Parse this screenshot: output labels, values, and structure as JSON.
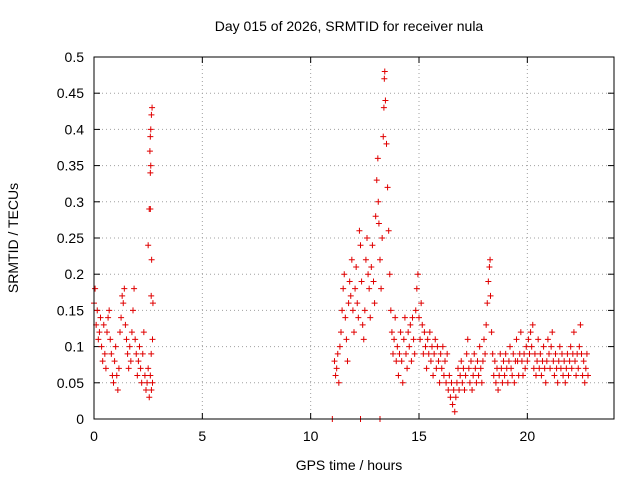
{
  "chart_data": {
    "type": "scatter",
    "title": "Day 015 of 2026, SRMTID for receiver nula",
    "xlabel": "GPS time / hours",
    "ylabel": "SRMTID / TECUs",
    "xlim": [
      0,
      24
    ],
    "ylim": [
      0,
      0.5
    ],
    "xticks": [
      0,
      5,
      10,
      15,
      20
    ],
    "xtick_labels": [
      "0",
      "5",
      "10",
      "15",
      "20"
    ],
    "yticks": [
      0,
      0.05,
      0.1,
      0.15,
      0.2,
      0.25,
      0.3,
      0.35,
      0.4,
      0.45,
      0.5
    ],
    "ytick_labels": [
      "0",
      "0.05",
      "0.1",
      "0.15",
      "0.2",
      "0.25",
      "0.3",
      "0.35",
      "0.4",
      "0.45",
      "0.5"
    ],
    "grid": true,
    "marker": "+",
    "color": "#e00000",
    "series": [
      {
        "name": "SRMTID",
        "points": [
          [
            0.0,
            0.16
          ],
          [
            0.05,
            0.18
          ],
          [
            0.1,
            0.13
          ],
          [
            0.15,
            0.15
          ],
          [
            0.2,
            0.11
          ],
          [
            0.25,
            0.12
          ],
          [
            0.3,
            0.14
          ],
          [
            0.35,
            0.1
          ],
          [
            0.4,
            0.08
          ],
          [
            0.45,
            0.13
          ],
          [
            0.5,
            0.09
          ],
          [
            0.55,
            0.07
          ],
          [
            0.6,
            0.12
          ],
          [
            0.65,
            0.14
          ],
          [
            0.7,
            0.15
          ],
          [
            0.75,
            0.11
          ],
          [
            0.8,
            0.09
          ],
          [
            0.85,
            0.06
          ],
          [
            0.9,
            0.05
          ],
          [
            0.95,
            0.08
          ],
          [
            1.0,
            0.1
          ],
          [
            1.05,
            0.06
          ],
          [
            1.1,
            0.04
          ],
          [
            1.15,
            0.07
          ],
          [
            1.2,
            0.12
          ],
          [
            1.25,
            0.14
          ],
          [
            1.3,
            0.17
          ],
          [
            1.35,
            0.16
          ],
          [
            1.4,
            0.18
          ],
          [
            1.45,
            0.13
          ],
          [
            1.5,
            0.11
          ],
          [
            1.55,
            0.09
          ],
          [
            1.6,
            0.07
          ],
          [
            1.65,
            0.1
          ],
          [
            1.7,
            0.08
          ],
          [
            1.75,
            0.12
          ],
          [
            1.8,
            0.15
          ],
          [
            1.85,
            0.18
          ],
          [
            1.9,
            0.11
          ],
          [
            1.95,
            0.09
          ],
          [
            2.0,
            0.06
          ],
          [
            2.05,
            0.08
          ],
          [
            2.1,
            0.1
          ],
          [
            2.15,
            0.07
          ],
          [
            2.2,
            0.05
          ],
          [
            2.25,
            0.09
          ],
          [
            2.3,
            0.12
          ],
          [
            2.35,
            0.06
          ],
          [
            2.4,
            0.04
          ],
          [
            2.45,
            0.05
          ],
          [
            2.5,
            0.07
          ],
          [
            2.55,
            0.03
          ],
          [
            2.6,
            0.06
          ],
          [
            2.65,
            0.04
          ],
          [
            2.7,
            0.05
          ],
          [
            2.5,
            0.24
          ],
          [
            2.55,
            0.29
          ],
          [
            2.6,
            0.34
          ],
          [
            2.6,
            0.39
          ],
          [
            2.65,
            0.42
          ],
          [
            2.62,
            0.35
          ],
          [
            2.68,
            0.43
          ],
          [
            2.66,
            0.22
          ],
          [
            2.64,
            0.17
          ],
          [
            2.7,
            0.11
          ],
          [
            2.72,
            0.16
          ],
          [
            2.6,
            0.29
          ],
          [
            2.58,
            0.37
          ],
          [
            2.62,
            0.4
          ],
          [
            2.64,
            0.09
          ],
          [
            11.0,
            0.0
          ],
          [
            11.1,
            0.08
          ],
          [
            11.15,
            0.06
          ],
          [
            11.2,
            0.07
          ],
          [
            11.25,
            0.09
          ],
          [
            11.3,
            0.05
          ],
          [
            11.35,
            0.1
          ],
          [
            11.4,
            0.12
          ],
          [
            11.45,
            0.15
          ],
          [
            11.5,
            0.18
          ],
          [
            11.55,
            0.2
          ],
          [
            11.6,
            0.14
          ],
          [
            11.65,
            0.11
          ],
          [
            11.7,
            0.08
          ],
          [
            11.75,
            0.16
          ],
          [
            11.8,
            0.19
          ],
          [
            11.85,
            0.17
          ],
          [
            11.9,
            0.22
          ],
          [
            11.95,
            0.15
          ],
          [
            12.0,
            0.12
          ],
          [
            12.05,
            0.18
          ],
          [
            12.1,
            0.21
          ],
          [
            12.15,
            0.16
          ],
          [
            12.2,
            0.14
          ],
          [
            12.25,
            0.26
          ],
          [
            12.3,
            0.24
          ],
          [
            12.35,
            0.19
          ],
          [
            12.4,
            0.13
          ],
          [
            12.45,
            0.11
          ],
          [
            12.5,
            0.15
          ],
          [
            12.55,
            0.22
          ],
          [
            12.6,
            0.25
          ],
          [
            12.65,
            0.2
          ],
          [
            12.7,
            0.18
          ],
          [
            12.75,
            0.14
          ],
          [
            12.8,
            0.21
          ],
          [
            12.85,
            0.24
          ],
          [
            12.9,
            0.19
          ],
          [
            12.95,
            0.16
          ],
          [
            13.0,
            0.28
          ],
          [
            13.05,
            0.33
          ],
          [
            13.1,
            0.36
          ],
          [
            13.12,
            0.3
          ],
          [
            13.15,
            0.27
          ],
          [
            13.2,
            0.22
          ],
          [
            13.25,
            0.18
          ],
          [
            13.3,
            0.25
          ],
          [
            13.35,
            0.39
          ],
          [
            13.38,
            0.43
          ],
          [
            13.4,
            0.47
          ],
          [
            13.42,
            0.48
          ],
          [
            13.45,
            0.44
          ],
          [
            13.5,
            0.38
          ],
          [
            13.55,
            0.32
          ],
          [
            13.6,
            0.26
          ],
          [
            13.65,
            0.2
          ],
          [
            13.7,
            0.15
          ],
          [
            13.75,
            0.12
          ],
          [
            13.8,
            0.09
          ],
          [
            13.85,
            0.11
          ],
          [
            13.9,
            0.14
          ],
          [
            13.95,
            0.08
          ],
          [
            14.0,
            0.1
          ],
          [
            14.05,
            0.06
          ],
          [
            14.1,
            0.09
          ],
          [
            14.15,
            0.12
          ],
          [
            14.2,
            0.08
          ],
          [
            14.25,
            0.05
          ],
          [
            14.3,
            0.11
          ],
          [
            14.35,
            0.14
          ],
          [
            14.4,
            0.09
          ],
          [
            14.45,
            0.07
          ],
          [
            14.5,
            0.12
          ],
          [
            14.55,
            0.1
          ],
          [
            14.6,
            0.13
          ],
          [
            14.65,
            0.08
          ],
          [
            14.7,
            0.14
          ],
          [
            14.75,
            0.11
          ],
          [
            14.8,
            0.09
          ],
          [
            14.85,
            0.15
          ],
          [
            14.9,
            0.18
          ],
          [
            14.95,
            0.2
          ],
          [
            15.0,
            0.14
          ],
          [
            15.05,
            0.11
          ],
          [
            15.1,
            0.16
          ],
          [
            15.15,
            0.13
          ],
          [
            15.2,
            0.09
          ],
          [
            15.25,
            0.12
          ],
          [
            15.3,
            0.1
          ],
          [
            15.35,
            0.07
          ],
          [
            15.4,
            0.11
          ],
          [
            15.45,
            0.09
          ],
          [
            15.5,
            0.12
          ],
          [
            15.55,
            0.08
          ],
          [
            15.6,
            0.1
          ],
          [
            15.65,
            0.06
          ],
          [
            15.7,
            0.09
          ],
          [
            15.75,
            0.11
          ],
          [
            15.8,
            0.07
          ],
          [
            15.85,
            0.1
          ],
          [
            15.9,
            0.08
          ],
          [
            15.95,
            0.05
          ],
          [
            16.0,
            0.09
          ],
          [
            16.05,
            0.07
          ],
          [
            16.1,
            0.1
          ],
          [
            16.15,
            0.06
          ],
          [
            16.2,
            0.08
          ],
          [
            16.25,
            0.05
          ],
          [
            16.3,
            0.09
          ],
          [
            16.35,
            0.04
          ],
          [
            16.4,
            0.06
          ],
          [
            16.45,
            0.03
          ],
          [
            16.5,
            0.05
          ],
          [
            16.55,
            0.02
          ],
          [
            16.6,
            0.04
          ],
          [
            16.65,
            0.01
          ],
          [
            16.7,
            0.03
          ],
          [
            16.75,
            0.05
          ],
          [
            16.8,
            0.07
          ],
          [
            16.85,
            0.04
          ],
          [
            16.9,
            0.06
          ],
          [
            16.95,
            0.08
          ],
          [
            17.0,
            0.05
          ],
          [
            17.05,
            0.07
          ],
          [
            17.1,
            0.04
          ],
          [
            17.15,
            0.06
          ],
          [
            17.2,
            0.09
          ],
          [
            17.25,
            0.11
          ],
          [
            17.3,
            0.07
          ],
          [
            17.35,
            0.05
          ],
          [
            17.4,
            0.08
          ],
          [
            17.45,
            0.04
          ],
          [
            17.5,
            0.06
          ],
          [
            17.55,
            0.09
          ],
          [
            17.6,
            0.07
          ],
          [
            17.65,
            0.05
          ],
          [
            17.7,
            0.08
          ],
          [
            17.75,
            0.06
          ],
          [
            17.8,
            0.1
          ],
          [
            17.85,
            0.07
          ],
          [
            17.9,
            0.05
          ],
          [
            17.95,
            0.08
          ],
          [
            18.0,
            0.11
          ],
          [
            18.05,
            0.09
          ],
          [
            18.1,
            0.13
          ],
          [
            18.15,
            0.16
          ],
          [
            18.2,
            0.19
          ],
          [
            18.25,
            0.21
          ],
          [
            18.28,
            0.22
          ],
          [
            18.3,
            0.17
          ],
          [
            18.35,
            0.12
          ],
          [
            18.4,
            0.09
          ],
          [
            18.45,
            0.06
          ],
          [
            18.5,
            0.08
          ],
          [
            18.55,
            0.05
          ],
          [
            18.6,
            0.07
          ],
          [
            18.65,
            0.04
          ],
          [
            18.7,
            0.06
          ],
          [
            18.75,
            0.09
          ],
          [
            18.8,
            0.07
          ],
          [
            18.85,
            0.05
          ],
          [
            18.9,
            0.08
          ],
          [
            18.95,
            0.06
          ],
          [
            19.0,
            0.09
          ],
          [
            19.05,
            0.07
          ],
          [
            19.1,
            0.05
          ],
          [
            19.15,
            0.08
          ],
          [
            19.2,
            0.1
          ],
          [
            19.25,
            0.07
          ],
          [
            19.3,
            0.06
          ],
          [
            19.35,
            0.09
          ],
          [
            19.4,
            0.05
          ],
          [
            19.45,
            0.08
          ],
          [
            19.5,
            0.11
          ],
          [
            19.55,
            0.08
          ],
          [
            19.6,
            0.06
          ],
          [
            19.65,
            0.09
          ],
          [
            19.7,
            0.12
          ],
          [
            19.75,
            0.08
          ],
          [
            19.8,
            0.06
          ],
          [
            19.85,
            0.09
          ],
          [
            19.9,
            0.07
          ],
          [
            19.95,
            0.1
          ],
          [
            20.0,
            0.08
          ],
          [
            20.05,
            0.11
          ],
          [
            20.1,
            0.09
          ],
          [
            20.15,
            0.12
          ],
          [
            20.2,
            0.1
          ],
          [
            20.25,
            0.13
          ],
          [
            20.3,
            0.07
          ],
          [
            20.35,
            0.09
          ],
          [
            20.4,
            0.06
          ],
          [
            20.45,
            0.08
          ],
          [
            20.5,
            0.11
          ],
          [
            20.55,
            0.07
          ],
          [
            20.6,
            0.09
          ],
          [
            20.65,
            0.06
          ],
          [
            20.7,
            0.08
          ],
          [
            20.75,
            0.1
          ],
          [
            20.8,
            0.07
          ],
          [
            20.85,
            0.05
          ],
          [
            20.9,
            0.08
          ],
          [
            20.95,
            0.11
          ],
          [
            21.0,
            0.09
          ],
          [
            21.05,
            0.07
          ],
          [
            21.1,
            0.1
          ],
          [
            21.15,
            0.12
          ],
          [
            21.2,
            0.08
          ],
          [
            21.25,
            0.06
          ],
          [
            21.3,
            0.09
          ],
          [
            21.35,
            0.07
          ],
          [
            21.4,
            0.05
          ],
          [
            21.45,
            0.08
          ],
          [
            21.5,
            0.1
          ],
          [
            21.55,
            0.07
          ],
          [
            21.6,
            0.09
          ],
          [
            21.65,
            0.06
          ],
          [
            21.7,
            0.08
          ],
          [
            21.75,
            0.05
          ],
          [
            21.8,
            0.07
          ],
          [
            21.85,
            0.09
          ],
          [
            21.9,
            0.06
          ],
          [
            21.95,
            0.08
          ],
          [
            22.0,
            0.1
          ],
          [
            22.05,
            0.07
          ],
          [
            22.1,
            0.09
          ],
          [
            22.15,
            0.12
          ],
          [
            22.2,
            0.08
          ],
          [
            22.25,
            0.06
          ],
          [
            22.3,
            0.09
          ],
          [
            22.35,
            0.07
          ],
          [
            22.4,
            0.1
          ],
          [
            22.45,
            0.13
          ],
          [
            22.5,
            0.09
          ],
          [
            22.55,
            0.06
          ],
          [
            22.6,
            0.08
          ],
          [
            22.65,
            0.05
          ],
          [
            22.7,
            0.07
          ],
          [
            22.75,
            0.09
          ],
          [
            22.8,
            0.06
          ],
          [
            12.3,
            0.0
          ],
          [
            13.2,
            0.0
          ]
        ]
      }
    ]
  }
}
